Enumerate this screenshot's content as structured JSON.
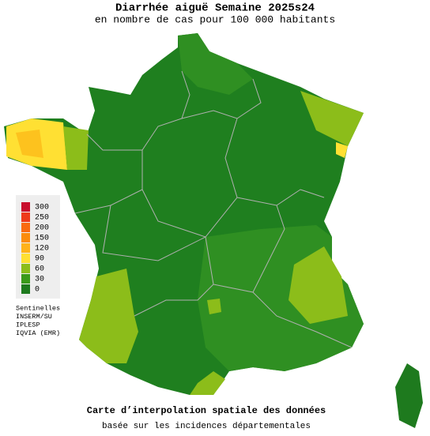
{
  "title": "Diarrhée aiguë Semaine 2025s24",
  "subtitle": "en nombre de cas pour 100 000 habitants",
  "legend": {
    "values": [
      300,
      250,
      200,
      150,
      120,
      90,
      60,
      30,
      0
    ],
    "colors": [
      "#c8102e",
      "#ee3b1c",
      "#f96b10",
      "#fb8c0c",
      "#ffb21a",
      "#ffe033",
      "#8cbd1a",
      "#3a9a1a",
      "#1e7a1e"
    ]
  },
  "sources": [
    "Sentinelles",
    "INSERM/SU",
    "IPLESP",
    "IQVIA (EMR)"
  ],
  "footer": {
    "line1": "Carte d’interpolation spatiale des données",
    "line2": "basée sur les incidences départementales"
  }
}
